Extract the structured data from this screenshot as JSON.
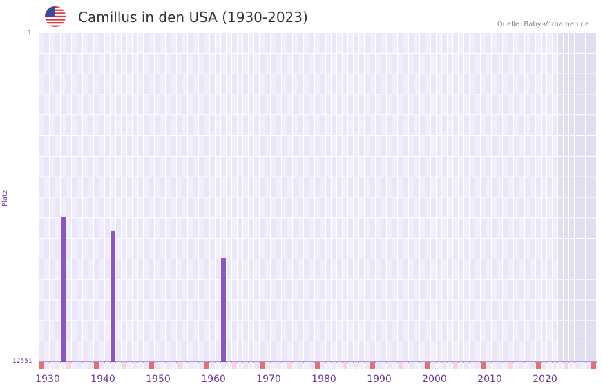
{
  "header": {
    "title": "Camillus in den USA (1930-2023)",
    "source": "Quelle: Baby-Vornamen.de",
    "flag_icon": "us-flag-icon"
  },
  "axis": {
    "y_top_label": "1",
    "y_bottom_label": "12551",
    "y_title": "Platz"
  },
  "colors": {
    "bar": "#8b55c8",
    "grid_cell_a": "#f1eefb",
    "grid_cell_b": "#ebe6f8",
    "shaded_cell": "#e2ddef",
    "axis": "#6a2d9e",
    "marker_red": "#e07078",
    "marker_pink": "#f5d6de"
  },
  "chart_data": {
    "type": "bar",
    "title": "Camillus in den USA (1930-2023)",
    "xlabel": "",
    "ylabel": "Platz",
    "ylim": [
      12551,
      1
    ],
    "y_inverted": true,
    "x_range": [
      1928,
      2028
    ],
    "x_ticks": [
      "1930",
      "1940",
      "1950",
      "1960",
      "1970",
      "1980",
      "1990",
      "2000",
      "2010",
      "2020"
    ],
    "categories": [
      "1932",
      "1941",
      "1961"
    ],
    "values": [
      7000,
      7550,
      8580
    ],
    "grid": true,
    "shaded_region": [
      2022,
      2028
    ],
    "source": "Quelle: Baby-Vornamen.de"
  }
}
